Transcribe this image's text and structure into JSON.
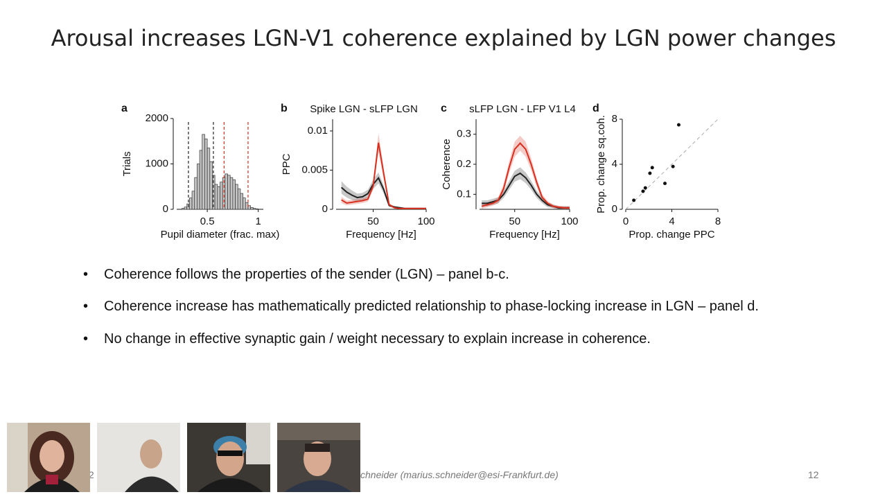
{
  "slide": {
    "title": "Arousal increases LGN-V1 coherence explained by LGN power changes",
    "panels": [
      {
        "letter": "a",
        "type": "histogram",
        "xlabel": "Pupil diameter (frac. max)",
        "ylabel": "Trials",
        "bins": [
          0.25,
          0.275,
          0.3,
          0.325,
          0.35,
          0.375,
          0.4,
          0.425,
          0.45,
          0.475,
          0.5,
          0.525,
          0.55,
          0.575,
          0.6,
          0.625,
          0.65,
          0.675,
          0.7,
          0.725,
          0.75,
          0.775,
          0.8,
          0.825,
          0.85,
          0.875,
          0.9,
          0.925,
          0.95,
          0.975,
          1.0
        ],
        "counts": [
          20,
          50,
          120,
          250,
          400,
          700,
          1000,
          1300,
          1650,
          1550,
          1350,
          1050,
          750,
          550,
          500,
          600,
          700,
          780,
          750,
          700,
          650,
          550,
          450,
          350,
          250,
          150,
          80,
          40,
          20,
          10
        ],
        "thresholds": [
          {
            "value": 0.315,
            "color": "#222222"
          },
          {
            "value": 0.56,
            "color": "#222222"
          },
          {
            "value": 0.665,
            "color": "#d7301f"
          },
          {
            "value": 0.9,
            "color": "#d7301f"
          }
        ],
        "xlim": [
          0.2,
          1.05
        ],
        "xticks": [
          0.5,
          1
        ],
        "ylim": [
          0,
          2000
        ],
        "yticks": [
          0,
          1000,
          2000
        ]
      },
      {
        "letter": "b",
        "type": "line",
        "title": "Spike LGN - sLFP LGN",
        "xlabel": "Frequency [Hz]",
        "ylabel": "PPC",
        "x": [
          20,
          25,
          30,
          35,
          40,
          45,
          50,
          55,
          60,
          65,
          70,
          75,
          80,
          85,
          90,
          95,
          100
        ],
        "series": [
          {
            "color": "#222222",
            "values": [
              0.0028,
              0.0022,
              0.0018,
              0.0015,
              0.0016,
              0.002,
              0.0032,
              0.004,
              0.0025,
              0.0005,
              0.0003,
              0.0002,
              0.0001,
              0.0001,
              0.0001,
              0.0001,
              0.0001
            ],
            "errors": [
              0.0008,
              0.0007,
              0.0006,
              0.0005,
              0.0005,
              0.0005,
              0.0006,
              0.0007,
              0.0005,
              0.0002,
              0.0001,
              0.0001,
              0.0001,
              0.0001,
              0.0001,
              0.0001,
              0.0001
            ]
          },
          {
            "color": "#d7301f",
            "values": [
              0.0012,
              0.0008,
              0.0009,
              0.001,
              0.0011,
              0.0013,
              0.003,
              0.0085,
              0.0045,
              0.0006,
              0.0002,
              0.0001,
              0.0001,
              0.0001,
              0.0001,
              0.0001,
              0.0001
            ],
            "errors": [
              0.0004,
              0.0003,
              0.0003,
              0.0003,
              0.0003,
              0.0003,
              0.0005,
              0.0012,
              0.0007,
              0.0002,
              0.0001,
              0.0001,
              0.0001,
              0.0001,
              0.0001,
              0.0001,
              0.0001
            ]
          }
        ],
        "xlim": [
          15,
          100
        ],
        "xticks": [
          50,
          100
        ],
        "ylim": [
          0,
          0.0115
        ],
        "yticks": [
          0,
          0.005,
          0.01
        ]
      },
      {
        "letter": "c",
        "type": "line",
        "title": "sLFP LGN - LFP V1 L4",
        "xlabel": "Frequency [Hz]",
        "ylabel": "Coherence",
        "x": [
          20,
          25,
          30,
          35,
          40,
          45,
          50,
          55,
          60,
          65,
          70,
          75,
          80,
          85,
          90,
          95,
          100
        ],
        "series": [
          {
            "color": "#222222",
            "values": [
              0.07,
              0.07,
              0.075,
              0.08,
              0.1,
              0.13,
              0.16,
              0.17,
              0.155,
              0.13,
              0.1,
              0.08,
              0.065,
              0.06,
              0.055,
              0.055,
              0.055
            ],
            "errors": [
              0.01,
              0.01,
              0.01,
              0.01,
              0.012,
              0.015,
              0.018,
              0.02,
              0.018,
              0.015,
              0.012,
              0.01,
              0.008,
              0.006,
              0.005,
              0.005,
              0.005
            ]
          },
          {
            "color": "#d7301f",
            "values": [
              0.06,
              0.065,
              0.07,
              0.08,
              0.12,
              0.19,
              0.25,
              0.27,
              0.25,
              0.2,
              0.14,
              0.09,
              0.07,
              0.06,
              0.057,
              0.055,
              0.055
            ],
            "errors": [
              0.008,
              0.008,
              0.008,
              0.01,
              0.015,
              0.02,
              0.025,
              0.025,
              0.025,
              0.02,
              0.015,
              0.01,
              0.008,
              0.006,
              0.005,
              0.005,
              0.005
            ]
          }
        ],
        "xlim": [
          18,
          100
        ],
        "xticks": [
          50,
          100
        ],
        "ylim": [
          0.05,
          0.35
        ],
        "yticks": [
          0.1,
          0.2,
          0.3
        ]
      },
      {
        "letter": "d",
        "type": "scatter",
        "xlabel": "Prop. change PPC",
        "ylabel": "Prop. change sq.coh.",
        "x": [
          0.7,
          1.5,
          1.7,
          2.1,
          2.3,
          3.4,
          4.1,
          4.6
        ],
        "y": [
          0.8,
          1.6,
          1.9,
          3.2,
          3.7,
          2.3,
          3.8,
          7.5
        ],
        "diagonal": true,
        "xlim": [
          0,
          8
        ],
        "xticks": [
          0,
          4,
          8
        ],
        "ylim": [
          0,
          8
        ],
        "yticks": [
          0,
          4,
          8
        ]
      }
    ],
    "bullets": [
      "Coherence follows the properties of the sender (LGN) – panel b-c.",
      "Coherence increase has mathematically predicted relationship to phase-locking increase in LGN – panel d.",
      "No change in effective synaptic gain / weight necessary to explain increase in coherence."
    ],
    "date_fragment": "/2",
    "footer": "chneider (marius.schneider@esi-Frankfurt.de)",
    "page_number": "12"
  }
}
